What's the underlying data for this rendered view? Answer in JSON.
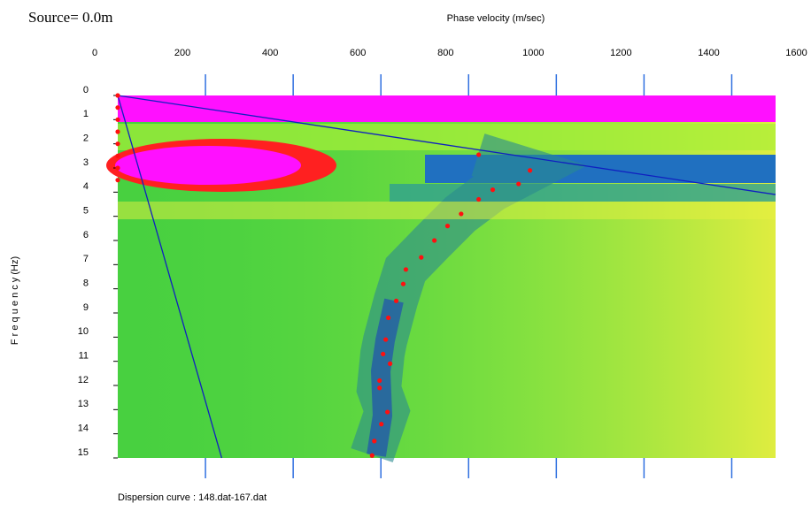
{
  "chart_data": {
    "type": "scatter",
    "title": "Source=  0.0m",
    "x_label": "Phase velocity (m/sec)",
    "y_label": "F r e q u e n c y  (Hz)",
    "caption": "Dispersion curve : 148.dat-167.dat",
    "xlim": [
      0,
      1500
    ],
    "ylim": [
      0,
      15
    ],
    "xticks": [
      0,
      200,
      400,
      600,
      800,
      1000,
      1200,
      1400,
      1600
    ],
    "yticks": [
      0,
      1,
      2,
      3,
      4,
      5,
      6,
      7,
      8,
      9,
      10,
      11,
      12,
      13,
      14,
      15
    ],
    "y_inverted": true,
    "series": [
      {
        "color": "#ff1010",
        "x": [
          0,
          0,
          0,
          0,
          0,
          0,
          0,
          0,
          823,
          940,
          914,
          855,
          823,
          783,
          752,
          722,
          692,
          657,
          651,
          635,
          617,
          611,
          605,
          621,
          597,
          597,
          615,
          601,
          585,
          580
        ],
        "values": [
          0,
          0.5,
          1,
          1.5,
          2,
          2.5,
          3,
          3.5,
          2.45,
          3.1,
          3.66,
          3.9,
          4.3,
          4.9,
          5.4,
          6.0,
          6.7,
          7.2,
          7.8,
          8.5,
          9.2,
          10.1,
          10.7,
          11.1,
          11.8,
          12.1,
          13.1,
          13.6,
          14.3,
          14.9
        ]
      }
    ],
    "lines": [
      {
        "color": "#1020c0",
        "x": [
          0,
          1500
        ],
        "values": [
          0,
          4.1
        ]
      },
      {
        "color": "#1020c0",
        "x": [
          0,
          237
        ],
        "values": [
          0,
          15
        ]
      }
    ]
  }
}
